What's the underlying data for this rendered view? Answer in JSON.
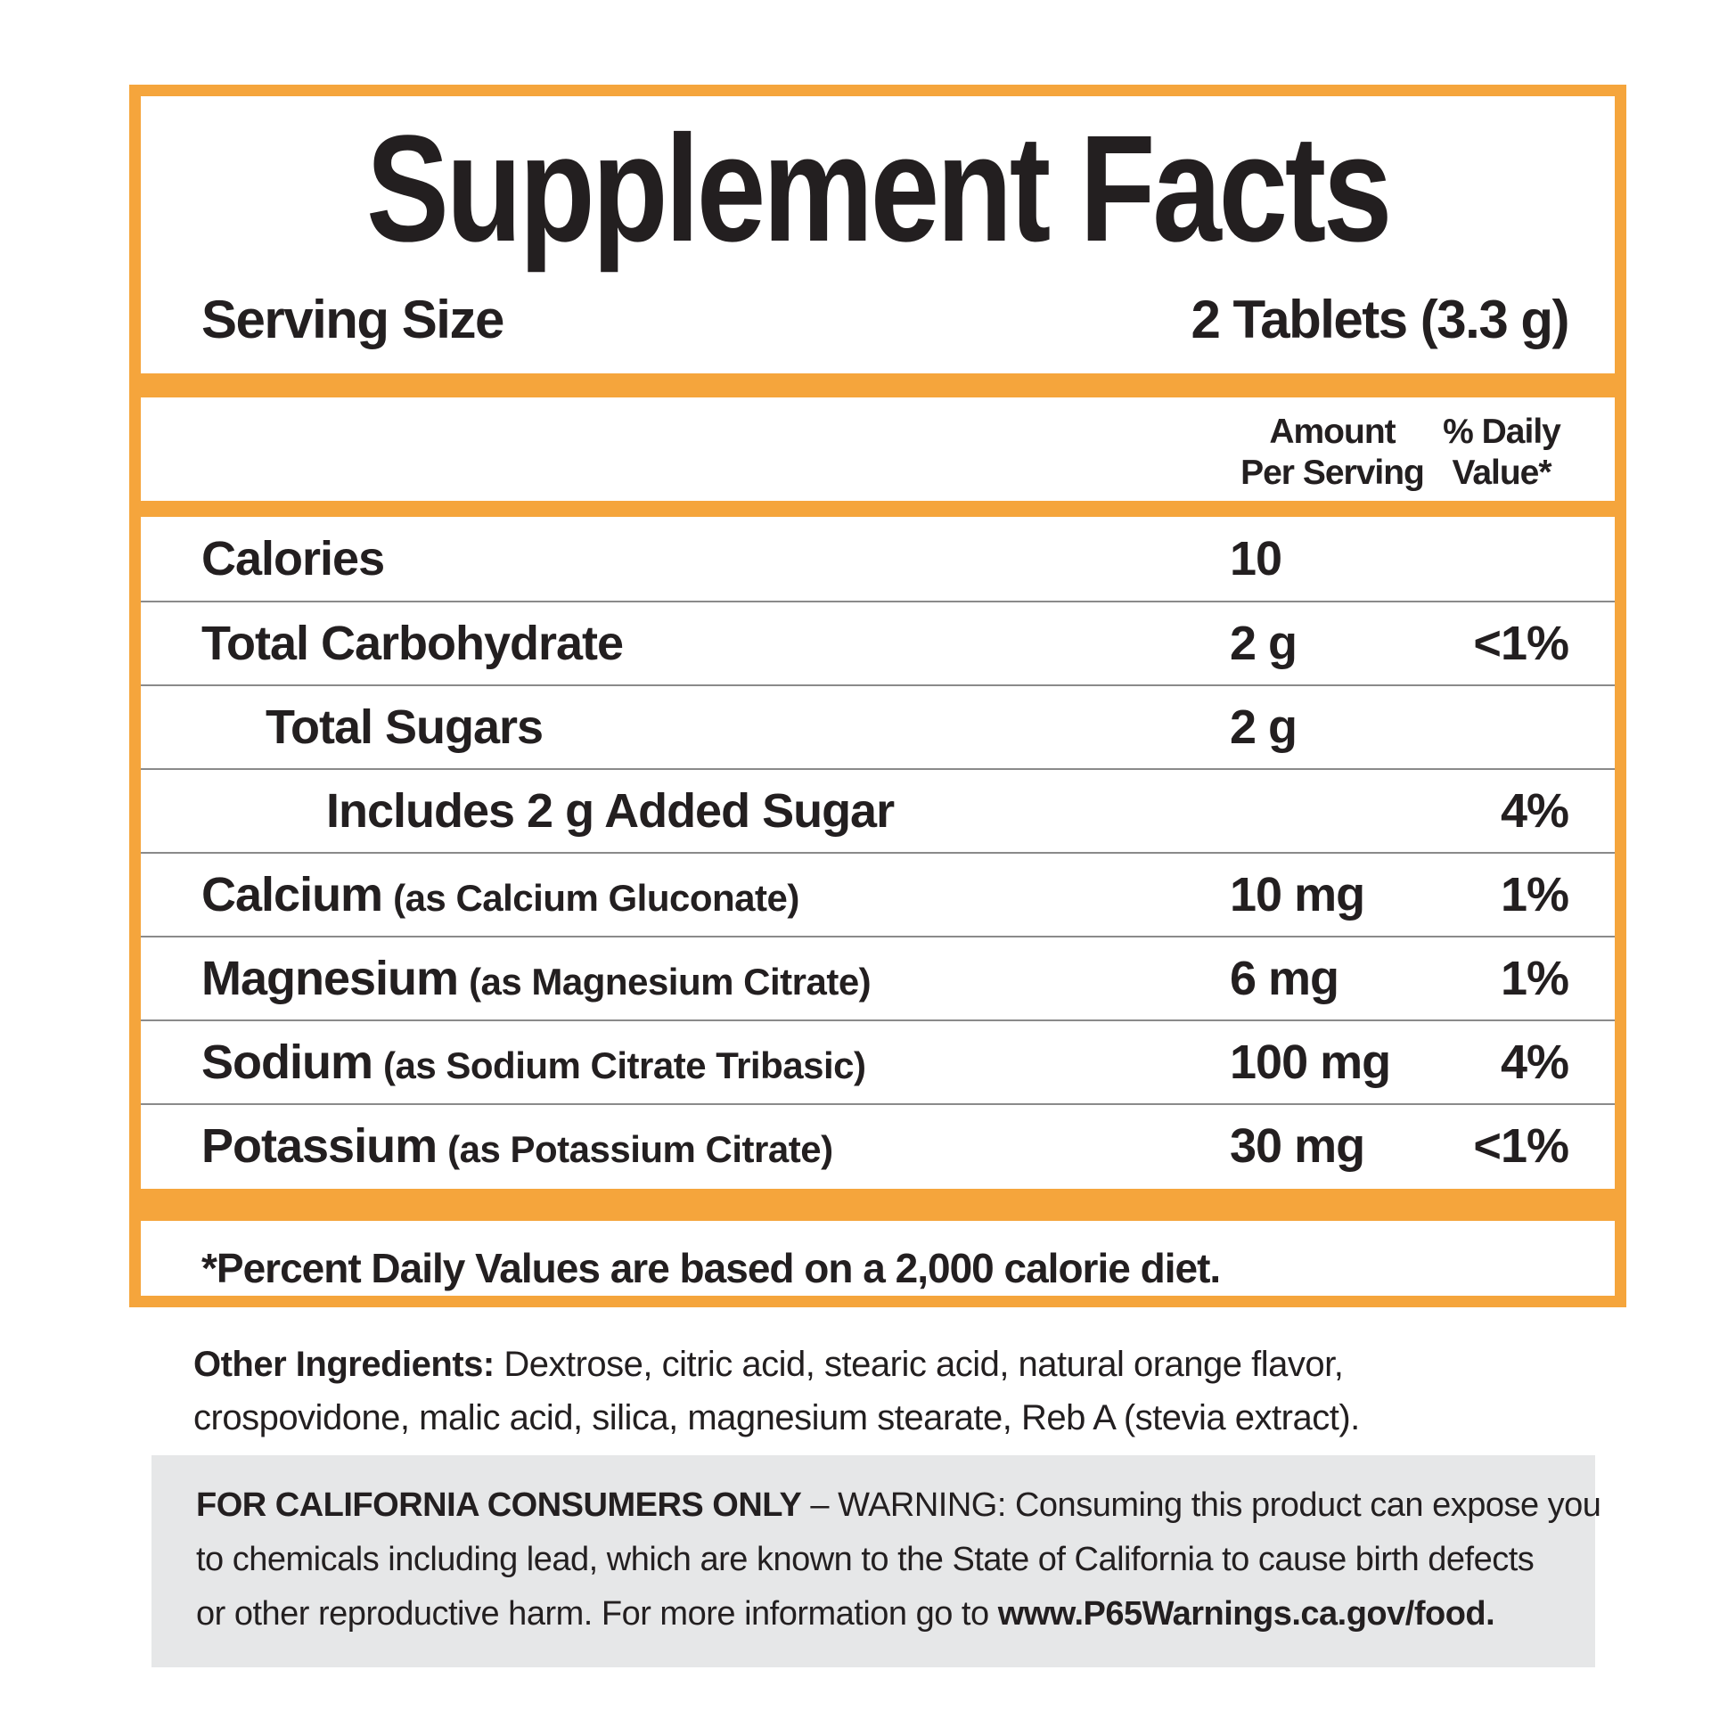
{
  "label": {
    "title": "Supplement Facts",
    "serving": {
      "label": "Serving Size",
      "value": "2 Tablets (3.3 g)"
    },
    "columns": {
      "amount_line1": "Amount",
      "amount_line2": "Per Serving",
      "dv_line1": "% Daily",
      "dv_line2": "Value*"
    },
    "rows": [
      {
        "name": "Calories",
        "sub": "",
        "amount": "10",
        "dv": ""
      },
      {
        "name": "Total Carbohydrate",
        "sub": "",
        "amount": "2 g",
        "dv": "<1%"
      },
      {
        "name": "Total Sugars",
        "sub": "",
        "amount": "2 g",
        "dv": ""
      },
      {
        "name": "Includes 2 g Added Sugar",
        "sub": "",
        "amount": "",
        "dv": "4%"
      },
      {
        "name": "Calcium",
        "sub": "(as Calcium Gluconate)",
        "amount": "10 mg",
        "dv": "1%"
      },
      {
        "name": "Magnesium",
        "sub": "(as Magnesium Citrate)",
        "amount": "6 mg",
        "dv": "1%"
      },
      {
        "name": "Sodium",
        "sub": "(as Sodium Citrate Tribasic)",
        "amount": "100 mg",
        "dv": "4%"
      },
      {
        "name": "Potassium",
        "sub": "(as Potassium Citrate)",
        "amount": "30 mg",
        "dv": "<1%"
      }
    ],
    "footnote": "*Percent Daily Values are based on a 2,000 calorie diet."
  },
  "other_ingredients": {
    "label": "Other Ingredients:",
    "line1_rest": " Dextrose, citric acid, stearic acid, natural orange flavor,",
    "line2": "crospovidone, malic acid, silica, magnesium stearate, Reb A (stevia extract)."
  },
  "california_warning": {
    "line1_bold": "FOR CALIFORNIA CONSUMERS ONLY",
    "line1_rest": " – WARNING: Consuming this product can expose you",
    "line2": "to chemicals including lead, which are known to the State of California to cause birth defects",
    "line3_start": "or other reproductive harm. For more information go to ",
    "line3_bold": "www.P65Warnings.ca.gov/food."
  },
  "colors": {
    "accent_orange": "#F5A53C",
    "warning_bg": "#E6E7E8",
    "separator_gray": "#8a8a8a",
    "text": "#231F20"
  }
}
